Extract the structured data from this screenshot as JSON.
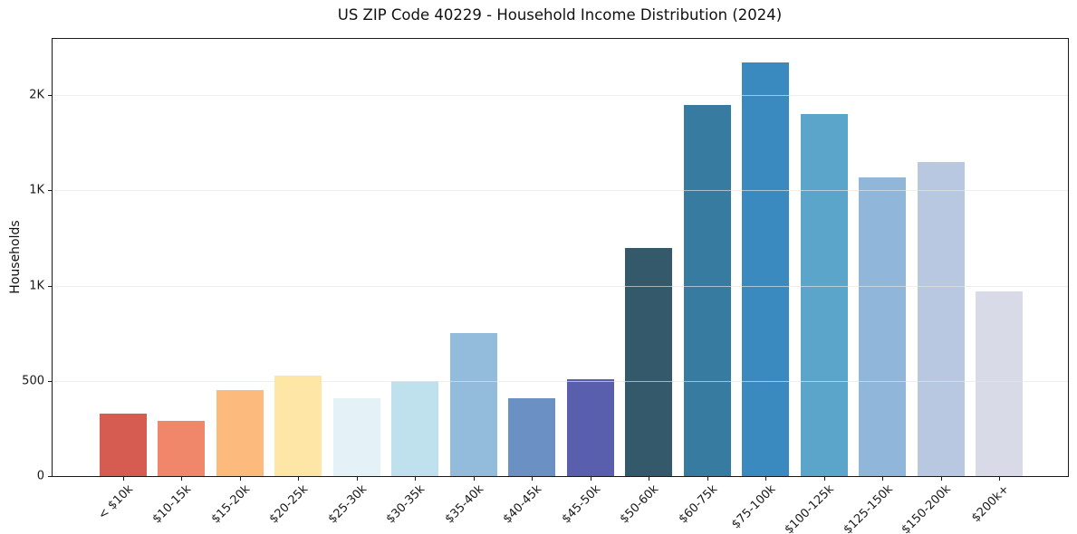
{
  "chart": {
    "title": "US ZIP Code 40229 - Household Income Distribution (2024)",
    "ylabel": "Households"
  },
  "chart_data": {
    "type": "bar",
    "title": "US ZIP Code 40229 - Household Income Distribution (2024)",
    "xlabel": "",
    "ylabel": "Households",
    "categories": [
      "< $10k",
      "$10-15k",
      "$15-20k",
      "$20-25k",
      "$25-30k",
      "$30-35k",
      "$35-40k",
      "$40-45k",
      "$45-50k",
      "$50-60k",
      "$60-75k",
      "$75-100k",
      "$100-125k",
      "$125-150k",
      "$150-200k",
      "$200k+"
    ],
    "values": [
      330,
      290,
      450,
      530,
      410,
      500,
      750,
      410,
      510,
      1200,
      1950,
      2170,
      1900,
      1570,
      1650,
      970
    ],
    "bar_colors": [
      "#d65b50",
      "#f0876a",
      "#fdba7d",
      "#fde6a6",
      "#e4f1f6",
      "#bee1ed",
      "#92bbdc",
      "#6b90c4",
      "#5a5fad",
      "#34596b",
      "#377ba1",
      "#3a8ac0",
      "#5ca5ca",
      "#90b7d9",
      "#b9c8e1",
      "#d8dae8"
    ],
    "y_ticks": [
      {
        "value": 0,
        "label": "0"
      },
      {
        "value": 500,
        "label": "500"
      },
      {
        "value": 1000,
        "label": "1K"
      },
      {
        "value": 1500,
        "label": "1K"
      },
      {
        "value": 2000,
        "label": "2K"
      }
    ],
    "gridline_values": [
      500,
      1000,
      1500,
      2000
    ],
    "ylim": [
      0,
      2295
    ],
    "grid": "horizontal",
    "legend": "none",
    "background": "#ffffff",
    "spine_color": "#1a1a1a",
    "gridline_color": "#e5e5e5"
  }
}
